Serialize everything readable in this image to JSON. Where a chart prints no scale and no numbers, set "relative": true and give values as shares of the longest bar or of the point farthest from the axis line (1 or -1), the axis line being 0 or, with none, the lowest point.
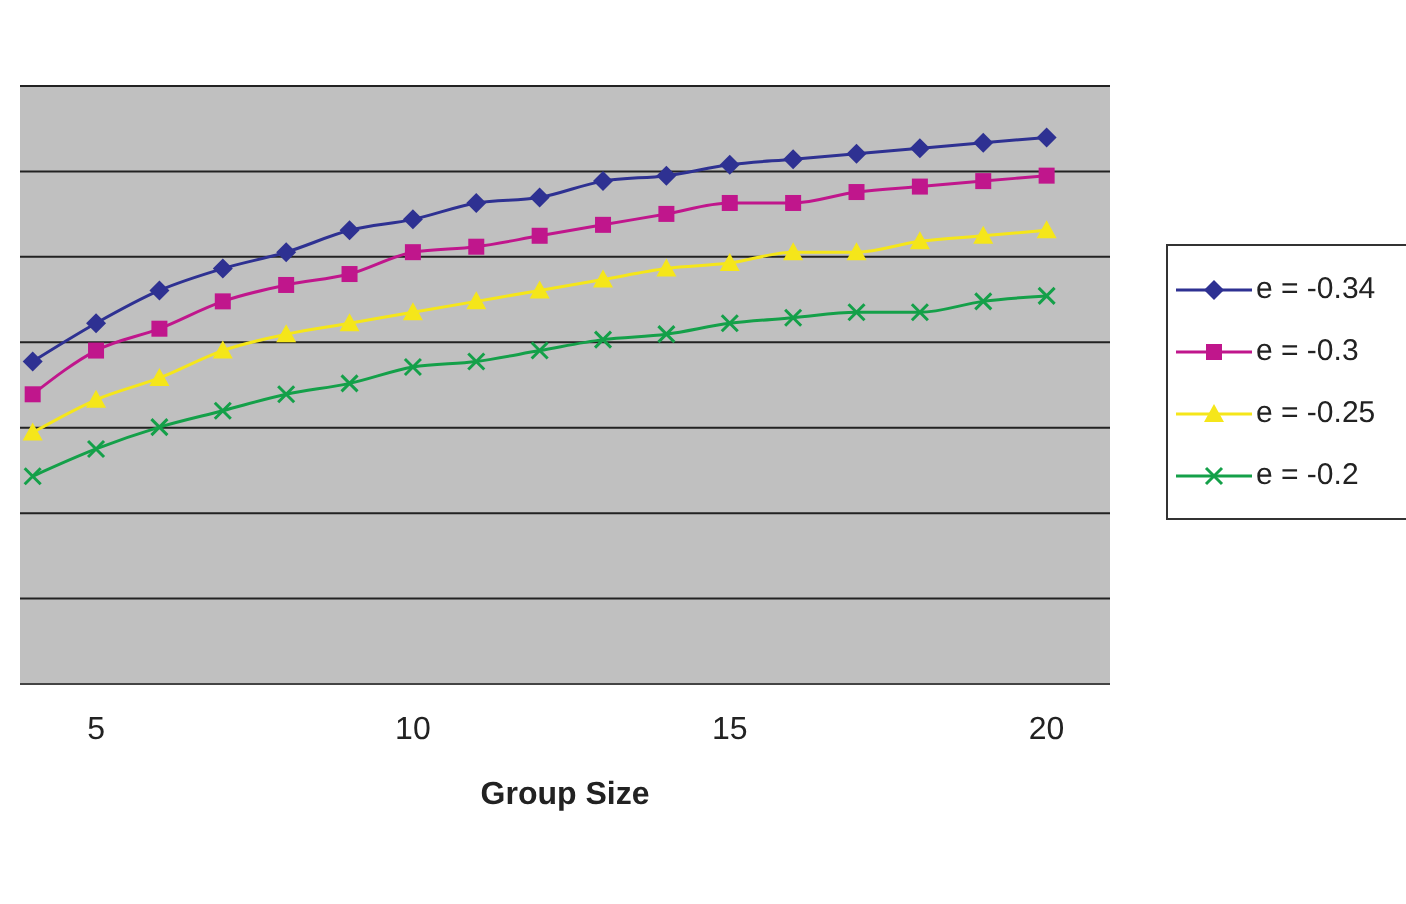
{
  "chart_data": {
    "type": "line",
    "xlabel": "Group Size",
    "relative": true,
    "xlim": [
      3.8,
      21
    ],
    "xticks": [
      5,
      10,
      15,
      20
    ],
    "grid": "y",
    "legend": "right",
    "x": [
      4,
      5,
      6,
      7,
      8,
      9,
      10,
      11,
      12,
      13,
      14,
      15,
      16,
      17,
      18,
      19,
      20
    ],
    "series": [
      {
        "name": "e = -0.34",
        "color": "#2e3192",
        "marker": "diamond",
        "values": [
          0.59,
          0.66,
          0.72,
          0.76,
          0.79,
          0.83,
          0.85,
          0.88,
          0.89,
          0.92,
          0.93,
          0.95,
          0.96,
          0.97,
          0.98,
          0.99,
          1
        ]
      },
      {
        "name": "e = -0.3",
        "color": "#c0168c",
        "marker": "square",
        "values": [
          0.53,
          0.61,
          0.65,
          0.7,
          0.73,
          0.75,
          0.79,
          0.8,
          0.82,
          0.84,
          0.86,
          0.88,
          0.88,
          0.9,
          0.91,
          0.92,
          0.93
        ]
      },
      {
        "name": "e = -0.25",
        "color": "#f5e61a",
        "marker": "triangle",
        "values": [
          0.46,
          0.52,
          0.56,
          0.61,
          0.64,
          0.66,
          0.68,
          0.7,
          0.72,
          0.74,
          0.76,
          0.77,
          0.79,
          0.79,
          0.81,
          0.82,
          0.83
        ]
      },
      {
        "name": "e = -0.2",
        "color": "#14a049",
        "marker": "cross",
        "values": [
          0.38,
          0.43,
          0.47,
          0.5,
          0.53,
          0.55,
          0.58,
          0.59,
          0.61,
          0.63,
          0.64,
          0.66,
          0.67,
          0.68,
          0.68,
          0.7,
          0.71
        ]
      }
    ]
  }
}
